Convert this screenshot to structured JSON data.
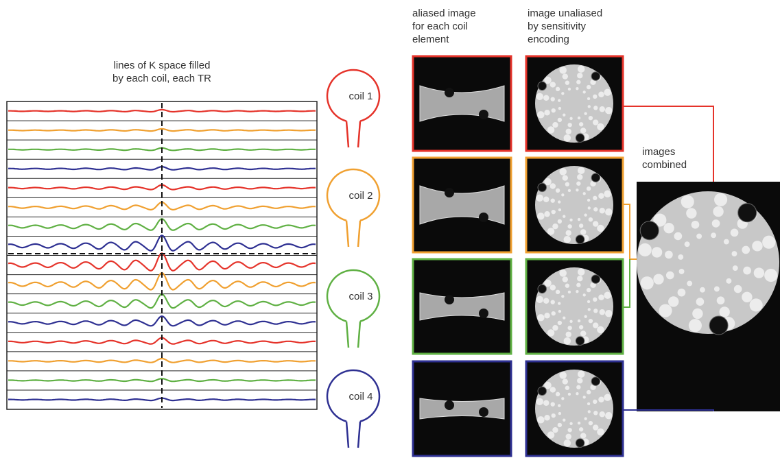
{
  "kspace_label": {
    "lines": [
      "lines of K space filled",
      "by each coil, each TR"
    ]
  },
  "columns": [
    {
      "lines": [
        "aliased image",
        "for each coil",
        "element"
      ]
    },
    {
      "lines": [
        "image unaliased",
        "by sensitivity",
        "encoding"
      ]
    }
  ],
  "coils": [
    {
      "label": "coil 1"
    },
    {
      "label": "coil 2"
    },
    {
      "label": "coil 3"
    },
    {
      "label": "coil 4"
    }
  ],
  "combined_label": {
    "lines": [
      "images",
      "combined"
    ]
  }
}
